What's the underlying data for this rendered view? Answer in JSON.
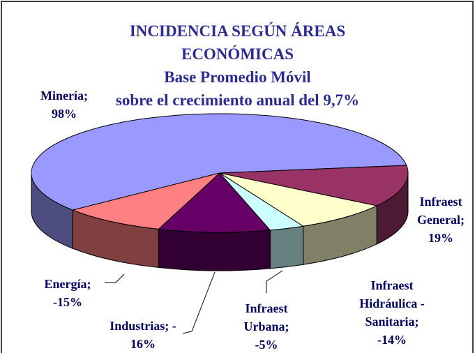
{
  "chart_data": {
    "type": "pie",
    "title": "INCIDENCIA SEGÚN ÁREAS\nECONÓMICAS",
    "subtitle": "Base Promedio Móvil\nsobre el crecimiento anual del 9,7%",
    "values": [
      98,
      19,
      -14,
      -5,
      -16,
      -15
    ],
    "value_labels": [
      "Minería;\n98%",
      "Infraest\nGeneral;\n19%",
      "Infraest\nHidráulica -\nSanitaria;\n-14%",
      "Infraest\nUrbana;\n-5%",
      "Industrias; -\n16%",
      "Energía;\n-15%"
    ],
    "colors": [
      "#9999ff",
      "#993366",
      "#ffffcc",
      "#ccffff",
      "#660066",
      "#ff8080"
    ],
    "side_colors": [
      "#4d4d80",
      "#4d1a33",
      "#808066",
      "#668080",
      "#330033",
      "#804040"
    ]
  }
}
